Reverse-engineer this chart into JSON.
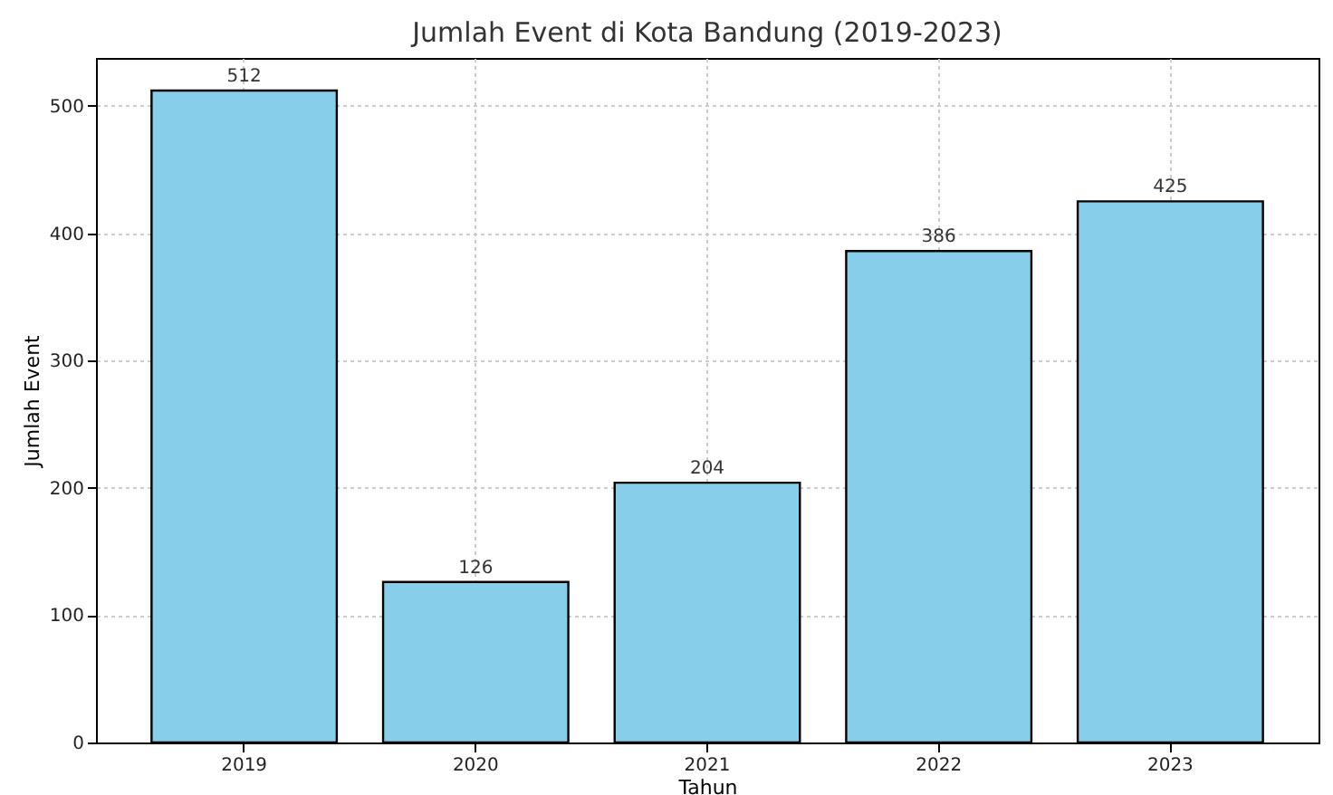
{
  "chart_data": {
    "type": "bar",
    "title": "Jumlah Event di Kota Bandung (2019-2023)",
    "xlabel": "Tahun",
    "ylabel": "Jumlah Event",
    "categories": [
      "2019",
      "2020",
      "2021",
      "2022",
      "2023"
    ],
    "values": [
      512,
      126,
      204,
      386,
      425
    ],
    "color": "#87ceeb",
    "ylim": [
      0,
      537.6
    ],
    "yticks": [
      0,
      100,
      200,
      300,
      400,
      500
    ],
    "grid": true,
    "data_labels": true
  }
}
